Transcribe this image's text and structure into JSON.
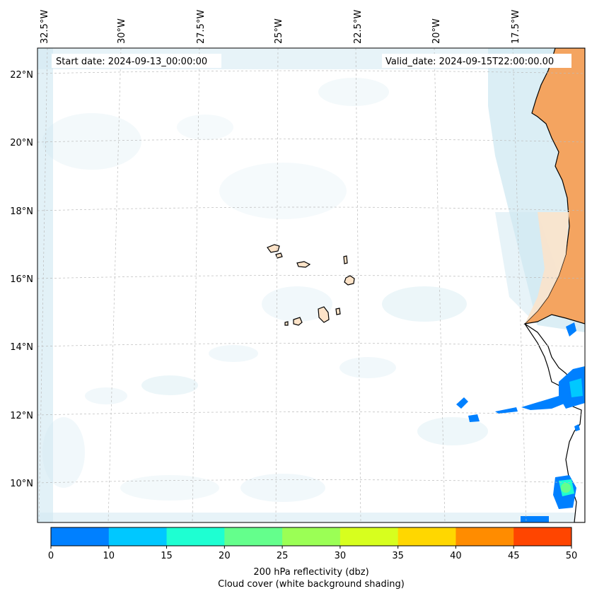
{
  "map": {
    "start_label": "Start date: 2024-09-13_00:00:00",
    "valid_label": "Valid_date: 2024-09-15T22:00:00.00",
    "lon_labels": [
      "32.5°W",
      "30°W",
      "27.5°W",
      "25°W",
      "22.5°W",
      "20°W",
      "17.5°W"
    ],
    "lat_labels": [
      "22°N",
      "20°N",
      "18°N",
      "16°N",
      "14°N",
      "12°N",
      "10°N"
    ],
    "colors": {
      "land_sahara": "#f4a460",
      "land_light": "#fde3c8",
      "cloud": "#cfe8f1",
      "grid": "#bbbbbb"
    }
  },
  "colorbar": {
    "ticks": [
      "0",
      "10",
      "15",
      "20",
      "25",
      "30",
      "35",
      "40",
      "45",
      "50"
    ],
    "colors": [
      "#0080ff",
      "#00c8ff",
      "#1effd2",
      "#64ff8c",
      "#9bff55",
      "#d7ff1e",
      "#ffd700",
      "#ff8c00",
      "#ff4500"
    ],
    "label_line1": "200 hPa reflectivity (dbz)",
    "label_line2": "Cloud cover (white background shading)"
  }
}
